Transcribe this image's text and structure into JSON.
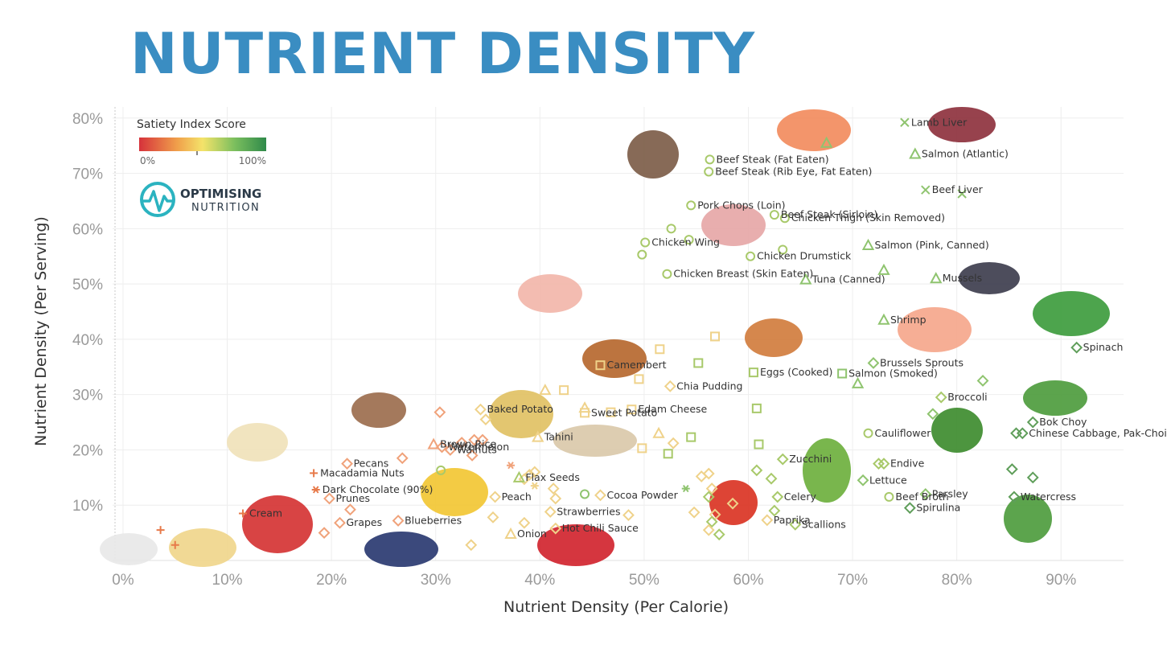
{
  "title": "NUTRIENT DENSITY",
  "brand": {
    "line1": "OPTIMISING",
    "line2": "NUTRITION",
    "icon": "heartbeat-logo-icon"
  },
  "legend": {
    "title": "Satiety Index Score",
    "min_label": "0%",
    "max_label": "100%",
    "colors": [
      "#d6323b",
      "#f0a04b",
      "#f4e36a",
      "#7cbf5e",
      "#2f8a4a"
    ]
  },
  "chart_data": {
    "type": "scatter",
    "xlabel": "Nutrient Density (Per Calorie)",
    "ylabel": "Nutrient Density (Per Serving)",
    "xlim": [
      -1,
      96
    ],
    "ylim": [
      0,
      82
    ],
    "xticks": [
      0,
      10,
      20,
      30,
      40,
      50,
      60,
      70,
      80,
      90
    ],
    "yticks": [
      10,
      20,
      30,
      40,
      50,
      60,
      70,
      80
    ],
    "tick_format": "percent",
    "grid": true,
    "legend_position": "top-left",
    "points": [
      {
        "x": 75,
        "y": 79.2,
        "marker": "x",
        "color": "#8fc46f",
        "label": "Lamb Liver"
      },
      {
        "x": 67.5,
        "y": 75.5,
        "marker": "triangle",
        "color": "#8fc46f",
        "label": ""
      },
      {
        "x": 76,
        "y": 73.5,
        "marker": "triangle",
        "color": "#8fc46f",
        "label": "Salmon (Atlantic)"
      },
      {
        "x": 56.3,
        "y": 72.5,
        "marker": "circle",
        "color": "#a8c96a",
        "label": "Beef Steak (Fat Eaten)"
      },
      {
        "x": 56.2,
        "y": 70.3,
        "marker": "circle",
        "color": "#a8c96a",
        "label": "Beef Steak (Rib Eye, Fat Eaten)"
      },
      {
        "x": 77,
        "y": 67,
        "marker": "x",
        "color": "#8fc46f",
        "label": "Beef Liver"
      },
      {
        "x": 80.5,
        "y": 66.3,
        "marker": "x",
        "color": "#8fc46f",
        "label": ""
      },
      {
        "x": 54.5,
        "y": 64.2,
        "marker": "circle",
        "color": "#a8c96a",
        "label": "Pork Chops (Loin)"
      },
      {
        "x": 62.5,
        "y": 62.5,
        "marker": "circle",
        "color": "#a8c96a",
        "label": "Beef Steak (Sirloin)"
      },
      {
        "x": 63.5,
        "y": 61.9,
        "marker": "circle",
        "color": "#a8c96a",
        "label": "Chicken Thigh (Skin Removed)"
      },
      {
        "x": 52.6,
        "y": 60,
        "marker": "circle",
        "color": "#a8c96a",
        "label": ""
      },
      {
        "x": 54.3,
        "y": 58,
        "marker": "circle",
        "color": "#a8c96a",
        "label": ""
      },
      {
        "x": 50.1,
        "y": 57.5,
        "marker": "circle",
        "color": "#a8c96a",
        "label": "Chicken Wing"
      },
      {
        "x": 71.5,
        "y": 57,
        "marker": "triangle",
        "color": "#8fc46f",
        "label": "Salmon (Pink, Canned)"
      },
      {
        "x": 63.3,
        "y": 56.2,
        "marker": "circle",
        "color": "#a8c96a",
        "label": ""
      },
      {
        "x": 49.8,
        "y": 55.3,
        "marker": "circle",
        "color": "#a8c96a",
        "label": ""
      },
      {
        "x": 60.2,
        "y": 55,
        "marker": "circle",
        "color": "#a8c96a",
        "label": "Chicken Drumstick"
      },
      {
        "x": 73,
        "y": 52.5,
        "marker": "triangle",
        "color": "#8fc46f",
        "label": ""
      },
      {
        "x": 52.2,
        "y": 51.8,
        "marker": "circle",
        "color": "#a8c96a",
        "label": "Chicken Breast (Skin Eaten)"
      },
      {
        "x": 78,
        "y": 51,
        "marker": "triangle",
        "color": "#8fc46f",
        "label": "Mussels"
      },
      {
        "x": 65.5,
        "y": 50.8,
        "marker": "triangle",
        "color": "#8fc46f",
        "label": "Tuna (Canned)"
      },
      {
        "x": 73,
        "y": 43.5,
        "marker": "triangle",
        "color": "#8fc46f",
        "label": "Shrimp"
      },
      {
        "x": 56.8,
        "y": 40.5,
        "marker": "square",
        "color": "#efd28a",
        "label": ""
      },
      {
        "x": 51.5,
        "y": 38.2,
        "marker": "square",
        "color": "#efd28a",
        "label": ""
      },
      {
        "x": 91.5,
        "y": 38.5,
        "marker": "diamond",
        "color": "#5f9e5a",
        "label": "Spinach"
      },
      {
        "x": 55.2,
        "y": 35.7,
        "marker": "square",
        "color": "#a8c96a",
        "label": ""
      },
      {
        "x": 72,
        "y": 35.7,
        "marker": "diamond",
        "color": "#8fc46f",
        "label": "Brussels Sprouts"
      },
      {
        "x": 60.5,
        "y": 34,
        "marker": "square",
        "color": "#a8c96a",
        "label": "Eggs (Cooked)"
      },
      {
        "x": 69,
        "y": 33.8,
        "marker": "square",
        "color": "#8fc46f",
        "label": "Salmon (Smoked)"
      },
      {
        "x": 70.5,
        "y": 32,
        "marker": "triangle",
        "color": "#8fc46f",
        "label": ""
      },
      {
        "x": 82.5,
        "y": 32.5,
        "marker": "diamond",
        "color": "#8fc46f",
        "label": ""
      },
      {
        "x": 49.5,
        "y": 32.8,
        "marker": "square",
        "color": "#efd28a",
        "label": ""
      },
      {
        "x": 52.5,
        "y": 31.5,
        "marker": "diamond",
        "color": "#efd28a",
        "label": "Chia Pudding"
      },
      {
        "x": 40.5,
        "y": 30.8,
        "marker": "triangle",
        "color": "#efd28a",
        "label": ""
      },
      {
        "x": 42.3,
        "y": 30.8,
        "marker": "square",
        "color": "#efd28a",
        "label": ""
      },
      {
        "x": 78.5,
        "y": 29.5,
        "marker": "diamond",
        "color": "#a8c96a",
        "label": "Broccoli"
      },
      {
        "x": 60.8,
        "y": 27.5,
        "marker": "square",
        "color": "#a8c96a",
        "label": ""
      },
      {
        "x": 48.8,
        "y": 27.3,
        "marker": "square",
        "color": "#efd28a",
        "label": "Edam Cheese"
      },
      {
        "x": 44.3,
        "y": 27.6,
        "marker": "triangle",
        "color": "#efd28a",
        "label": ""
      },
      {
        "x": 30.4,
        "y": 26.8,
        "marker": "diamond",
        "color": "#f0a27a",
        "label": ""
      },
      {
        "x": 46.8,
        "y": 26.8,
        "marker": "square",
        "color": "#efd28a",
        "label": ""
      },
      {
        "x": 77.7,
        "y": 26.5,
        "marker": "diamond",
        "color": "#8fc46f",
        "label": ""
      },
      {
        "x": 87.3,
        "y": 25,
        "marker": "diamond",
        "color": "#5f9e5a",
        "label": "Bok Choy"
      },
      {
        "x": 34.8,
        "y": 25.5,
        "marker": "diamond",
        "color": "#efd28a",
        "label": ""
      },
      {
        "x": 71.5,
        "y": 23,
        "marker": "circle",
        "color": "#a8c96a",
        "label": "Cauliflower"
      },
      {
        "x": 85.7,
        "y": 23,
        "marker": "diamond",
        "color": "#5f9e5a",
        "label": ""
      },
      {
        "x": 86.3,
        "y": 23,
        "marker": "diamond",
        "color": "#5f9e5a",
        "label": "Chinese Cabbage, Pak-Choi"
      },
      {
        "x": 54.5,
        "y": 22.3,
        "marker": "square",
        "color": "#a8c96a",
        "label": ""
      },
      {
        "x": 51.4,
        "y": 23,
        "marker": "triangle",
        "color": "#efd28a",
        "label": ""
      },
      {
        "x": 32.5,
        "y": 21.3,
        "marker": "diamond",
        "color": "#f0a27a",
        "label": ""
      },
      {
        "x": 33.7,
        "y": 21.8,
        "marker": "diamond",
        "color": "#f0a27a",
        "label": ""
      },
      {
        "x": 34.5,
        "y": 21.8,
        "marker": "diamond",
        "color": "#f0a27a",
        "label": ""
      },
      {
        "x": 29.8,
        "y": 21,
        "marker": "triangle",
        "color": "#f0a27a",
        "label": "Brown Rice"
      },
      {
        "x": 31.4,
        "y": 20,
        "marker": "diamond",
        "color": "#f0a27a",
        "label": "Walnuts"
      },
      {
        "x": 61,
        "y": 21,
        "marker": "square",
        "color": "#a8c96a",
        "label": ""
      },
      {
        "x": 52.8,
        "y": 21.2,
        "marker": "diamond",
        "color": "#efd28a",
        "label": ""
      },
      {
        "x": 49.8,
        "y": 20.3,
        "marker": "square",
        "color": "#efd28a",
        "label": ""
      },
      {
        "x": 52.3,
        "y": 19.3,
        "marker": "square",
        "color": "#a8c96a",
        "label": ""
      },
      {
        "x": 33.5,
        "y": 19,
        "marker": "diamond",
        "color": "#f0a27a",
        "label": ""
      },
      {
        "x": 26.8,
        "y": 18.5,
        "marker": "diamond",
        "color": "#f0a27a",
        "label": ""
      },
      {
        "x": 21.5,
        "y": 17.5,
        "marker": "diamond",
        "color": "#f0a27a",
        "label": "Pecans"
      },
      {
        "x": 37.2,
        "y": 17.2,
        "marker": "asterisk",
        "color": "#f0a27a",
        "label": ""
      },
      {
        "x": 63.3,
        "y": 18.3,
        "marker": "diamond",
        "color": "#a8c96a",
        "label": "Zucchini"
      },
      {
        "x": 72.5,
        "y": 17.5,
        "marker": "diamond",
        "color": "#a8c96a",
        "label": ""
      },
      {
        "x": 73,
        "y": 17.5,
        "marker": "diamond",
        "color": "#a8c96a",
        "label": "Endive"
      },
      {
        "x": 85.3,
        "y": 16.5,
        "marker": "diamond",
        "color": "#5f9e5a",
        "label": ""
      },
      {
        "x": 18.3,
        "y": 15.8,
        "marker": "plus",
        "color": "#e77a4a",
        "label": "Macadamia Nuts"
      },
      {
        "x": 30.5,
        "y": 16.3,
        "marker": "circle",
        "color": "#a8c96a",
        "label": ""
      },
      {
        "x": 60.8,
        "y": 16.3,
        "marker": "diamond",
        "color": "#a8c96a",
        "label": ""
      },
      {
        "x": 39,
        "y": 15.5,
        "marker": "diamond",
        "color": "#efd28a",
        "label": ""
      },
      {
        "x": 39.5,
        "y": 16,
        "marker": "diamond",
        "color": "#efd28a",
        "label": ""
      },
      {
        "x": 38.5,
        "y": 14.7,
        "marker": "diamond",
        "color": "#efd28a",
        "label": ""
      },
      {
        "x": 55.5,
        "y": 15.2,
        "marker": "diamond",
        "color": "#efd28a",
        "label": ""
      },
      {
        "x": 56.2,
        "y": 15.7,
        "marker": "diamond",
        "color": "#efd28a",
        "label": ""
      },
      {
        "x": 87.3,
        "y": 15,
        "marker": "diamond",
        "color": "#5f9e5a",
        "label": ""
      },
      {
        "x": 38,
        "y": 15,
        "marker": "triangle",
        "color": "#a8c96a",
        "label": "Flax Seeds"
      },
      {
        "x": 71,
        "y": 14.5,
        "marker": "diamond",
        "color": "#8fc46f",
        "label": "Lettuce"
      },
      {
        "x": 62.2,
        "y": 14.8,
        "marker": "diamond",
        "color": "#a8c96a",
        "label": ""
      },
      {
        "x": 39.5,
        "y": 13.5,
        "marker": "asterisk",
        "color": "#efd28a",
        "label": ""
      },
      {
        "x": 18.5,
        "y": 12.8,
        "marker": "asterisk",
        "color": "#e77a4a",
        "label": "Dark Chocolate (90%)"
      },
      {
        "x": 41.3,
        "y": 13,
        "marker": "diamond",
        "color": "#efd28a",
        "label": ""
      },
      {
        "x": 56.5,
        "y": 13,
        "marker": "diamond",
        "color": "#efd28a",
        "label": ""
      },
      {
        "x": 54,
        "y": 13,
        "marker": "asterisk",
        "color": "#8fc46f",
        "label": ""
      },
      {
        "x": 44.3,
        "y": 12,
        "marker": "circle",
        "color": "#8fc46f",
        "label": ""
      },
      {
        "x": 45.8,
        "y": 11.8,
        "marker": "diamond",
        "color": "#efd28a",
        "label": "Cocoa Powder"
      },
      {
        "x": 19.8,
        "y": 11.2,
        "marker": "diamond",
        "color": "#f0a27a",
        "label": "Prunes"
      },
      {
        "x": 35.7,
        "y": 11.5,
        "marker": "diamond",
        "color": "#efd28a",
        "label": "Peach"
      },
      {
        "x": 41.5,
        "y": 11.2,
        "marker": "diamond",
        "color": "#efd28a",
        "label": ""
      },
      {
        "x": 56.2,
        "y": 11.5,
        "marker": "diamond",
        "color": "#a8c96a",
        "label": ""
      },
      {
        "x": 62.8,
        "y": 11.5,
        "marker": "diamond",
        "color": "#a8c96a",
        "label": "Celery"
      },
      {
        "x": 73.5,
        "y": 11.5,
        "marker": "circle",
        "color": "#a8c96a",
        "label": "Beef Broth"
      },
      {
        "x": 77,
        "y": 12,
        "marker": "diamond",
        "color": "#8fc46f",
        "label": "Parsley"
      },
      {
        "x": 85.5,
        "y": 11.5,
        "marker": "diamond",
        "color": "#5f9e5a",
        "label": "Watercress"
      },
      {
        "x": 58.5,
        "y": 10.3,
        "marker": "diamond",
        "color": "#efd28a",
        "label": ""
      },
      {
        "x": 75.5,
        "y": 9.5,
        "marker": "diamond",
        "color": "#5f9e5a",
        "label": "Spirulina"
      },
      {
        "x": 62.5,
        "y": 9,
        "marker": "diamond",
        "color": "#a8c96a",
        "label": ""
      },
      {
        "x": 11.5,
        "y": 8.5,
        "marker": "plus",
        "color": "#e77a4a",
        "label": "Cream"
      },
      {
        "x": 21.8,
        "y": 9.2,
        "marker": "diamond",
        "color": "#f0a27a",
        "label": ""
      },
      {
        "x": 41,
        "y": 8.8,
        "marker": "diamond",
        "color": "#efd28a",
        "label": "Strawberries"
      },
      {
        "x": 48.5,
        "y": 8.2,
        "marker": "diamond",
        "color": "#efd28a",
        "label": ""
      },
      {
        "x": 54.8,
        "y": 8.7,
        "marker": "diamond",
        "color": "#efd28a",
        "label": ""
      },
      {
        "x": 56.8,
        "y": 8.3,
        "marker": "diamond",
        "color": "#efd28a",
        "label": ""
      },
      {
        "x": 35.5,
        "y": 7.8,
        "marker": "diamond",
        "color": "#efd28a",
        "label": ""
      },
      {
        "x": 26.4,
        "y": 7.2,
        "marker": "diamond",
        "color": "#f0a27a",
        "label": "Blueberries"
      },
      {
        "x": 20.8,
        "y": 6.8,
        "marker": "diamond",
        "color": "#f0a27a",
        "label": "Grapes"
      },
      {
        "x": 38.5,
        "y": 6.8,
        "marker": "diamond",
        "color": "#efd28a",
        "label": ""
      },
      {
        "x": 56.5,
        "y": 7,
        "marker": "diamond",
        "color": "#a8c96a",
        "label": ""
      },
      {
        "x": 64.5,
        "y": 6.5,
        "marker": "diamond",
        "color": "#a8c96a",
        "label": "Scallions"
      },
      {
        "x": 61.8,
        "y": 7.3,
        "marker": "diamond",
        "color": "#efd28a",
        "label": "Paprika"
      },
      {
        "x": 3.6,
        "y": 5.5,
        "marker": "plus",
        "color": "#e77a4a",
        "label": ""
      },
      {
        "x": 19.3,
        "y": 5,
        "marker": "diamond",
        "color": "#f0a27a",
        "label": ""
      },
      {
        "x": 37.2,
        "y": 4.8,
        "marker": "triangle",
        "color": "#efd28a",
        "label": "Onion"
      },
      {
        "x": 41.5,
        "y": 5.8,
        "marker": "diamond",
        "color": "#efd28a",
        "label": "Hot Chili Sauce"
      },
      {
        "x": 56.2,
        "y": 5.5,
        "marker": "diamond",
        "color": "#efd28a",
        "label": ""
      },
      {
        "x": 57.2,
        "y": 4.7,
        "marker": "diamond",
        "color": "#a8c96a",
        "label": ""
      },
      {
        "x": 5,
        "y": 2.8,
        "marker": "plus",
        "color": "#e77a4a",
        "label": ""
      },
      {
        "x": 33.4,
        "y": 2.8,
        "marker": "diamond",
        "color": "#efd28a",
        "label": ""
      },
      {
        "x": 30.6,
        "y": 20.5,
        "marker": "diamond",
        "color": "#f0a27a",
        "label": "Watermelon"
      },
      {
        "x": 34.3,
        "y": 27.3,
        "marker": "diamond",
        "color": "#efd28a",
        "label": "Baked Potato"
      },
      {
        "x": 44.3,
        "y": 26.7,
        "marker": "square",
        "color": "#efd28a",
        "label": "Sweet Potato"
      },
      {
        "x": 39.8,
        "y": 22.3,
        "marker": "triangle",
        "color": "#efd28a",
        "label": "Tahini"
      },
      {
        "x": 45.8,
        "y": 35.3,
        "marker": "square",
        "color": "#efd28a",
        "label": "Camembert"
      }
    ]
  }
}
